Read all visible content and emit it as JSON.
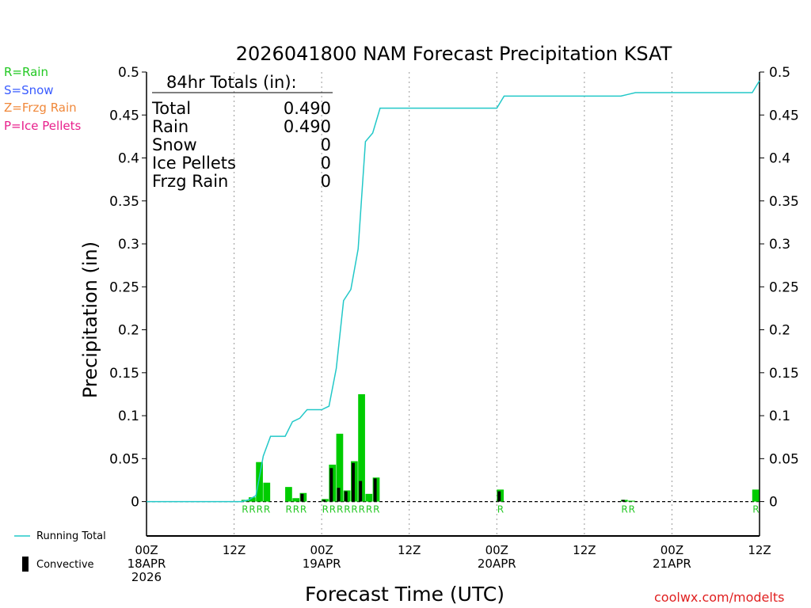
{
  "legend": {
    "rain": "R=Rain",
    "snow": "S=Snow",
    "frzg": "Z=Frzg Rain",
    "ice": "P=Ice Pellets",
    "running_total": "Running Total",
    "convective": "Convective",
    "colors": {
      "rain": "#22c822",
      "snow": "#3a5cff",
      "frzg": "#f0883a",
      "ice": "#e8208c",
      "running": "#22c8c8",
      "bar": "#00cc00",
      "conv": "#000000"
    }
  },
  "totals": {
    "header": "84hr Totals (in):",
    "rows": [
      {
        "label": "Total",
        "value": "0.490"
      },
      {
        "label": "Rain",
        "value": "0.490"
      },
      {
        "label": "Snow",
        "value": "0"
      },
      {
        "label": "Ice Pellets",
        "value": "0"
      },
      {
        "label": "Frzg Rain",
        "value": "0"
      }
    ]
  },
  "watermark": "coolwx.com/modelts",
  "chart_data": {
    "type": "bar",
    "title": "2026041800 NAM Forecast Precipitation KSAT",
    "xlabel": "Forecast Time (UTC)",
    "ylabel": "Precipitation (in)",
    "xlim": [
      0,
      84
    ],
    "ylim": [
      -0.04,
      0.5
    ],
    "y_ticks": [
      "0",
      "0.05",
      "0.1",
      "0.15",
      "0.2",
      "0.25",
      "0.3",
      "0.35",
      "0.4",
      "0.45",
      "0.5"
    ],
    "y_tick_values": [
      0,
      0.05,
      0.1,
      0.15,
      0.2,
      0.25,
      0.3,
      0.35,
      0.4,
      0.45,
      0.5
    ],
    "x_ticks": [
      {
        "hour": 0,
        "lines": [
          "00Z",
          "18APR",
          "2026"
        ]
      },
      {
        "hour": 12,
        "lines": [
          "12Z"
        ]
      },
      {
        "hour": 24,
        "lines": [
          "00Z",
          "19APR"
        ]
      },
      {
        "hour": 36,
        "lines": [
          "12Z"
        ]
      },
      {
        "hour": 48,
        "lines": [
          "00Z",
          "20APR"
        ]
      },
      {
        "hour": 60,
        "lines": [
          "12Z"
        ]
      },
      {
        "hour": 72,
        "lines": [
          "00Z",
          "21APR"
        ]
      },
      {
        "hour": 84,
        "lines": [
          "12Z"
        ]
      }
    ],
    "bars": [
      {
        "hour": 14,
        "total": 0.002,
        "conv": 0.0,
        "type": "R"
      },
      {
        "hour": 15,
        "total": 0.005,
        "conv": 0.0,
        "type": "R"
      },
      {
        "hour": 16,
        "total": 0.046,
        "conv": 0.0,
        "type": "R"
      },
      {
        "hour": 17,
        "total": 0.022,
        "conv": 0.0,
        "type": "R"
      },
      {
        "hour": 20,
        "total": 0.017,
        "conv": 0.0,
        "type": "R"
      },
      {
        "hour": 21,
        "total": 0.004,
        "conv": 0.0,
        "type": "R"
      },
      {
        "hour": 22,
        "total": 0.01,
        "conv": 0.009,
        "type": "R"
      },
      {
        "hour": 25,
        "total": 0.003,
        "conv": 0.002,
        "type": "R"
      },
      {
        "hour": 26,
        "total": 0.043,
        "conv": 0.039,
        "type": "R"
      },
      {
        "hour": 27,
        "total": 0.079,
        "conv": 0.016,
        "type": "R"
      },
      {
        "hour": 28,
        "total": 0.013,
        "conv": 0.012,
        "type": "R"
      },
      {
        "hour": 29,
        "total": 0.047,
        "conv": 0.045,
        "type": "R"
      },
      {
        "hour": 30,
        "total": 0.125,
        "conv": 0.024,
        "type": "R"
      },
      {
        "hour": 31,
        "total": 0.009,
        "conv": 0.0,
        "type": "R"
      },
      {
        "hour": 32,
        "total": 0.028,
        "conv": 0.027,
        "type": "R"
      },
      {
        "hour": 49,
        "total": 0.014,
        "conv": 0.012,
        "type": "R"
      },
      {
        "hour": 66,
        "total": 0.002,
        "conv": 0.002,
        "type": "R"
      },
      {
        "hour": 67,
        "total": 0.001,
        "conv": 0.0,
        "type": "R"
      },
      {
        "hour": 84,
        "total": 0.014,
        "conv": 0.0,
        "type": "R"
      }
    ],
    "running_total": {
      "x": [
        0,
        12,
        13,
        14,
        15,
        16,
        17,
        18,
        19,
        20,
        21,
        22,
        23,
        24,
        25,
        26,
        27,
        28,
        29,
        30,
        31,
        32,
        33,
        34,
        47,
        48,
        49,
        50,
        65,
        66,
        67,
        68,
        83,
        84
      ],
      "y": [
        0,
        0,
        0,
        0.002,
        0.007,
        0.053,
        0.076,
        0.076,
        0.076,
        0.093,
        0.097,
        0.107,
        0.107,
        0.107,
        0.111,
        0.155,
        0.234,
        0.247,
        0.294,
        0.419,
        0.429,
        0.458,
        0.458,
        0.458,
        0.458,
        0.458,
        0.472,
        0.472,
        0.472,
        0.474,
        0.476,
        0.476,
        0.476,
        0.49
      ]
    }
  }
}
